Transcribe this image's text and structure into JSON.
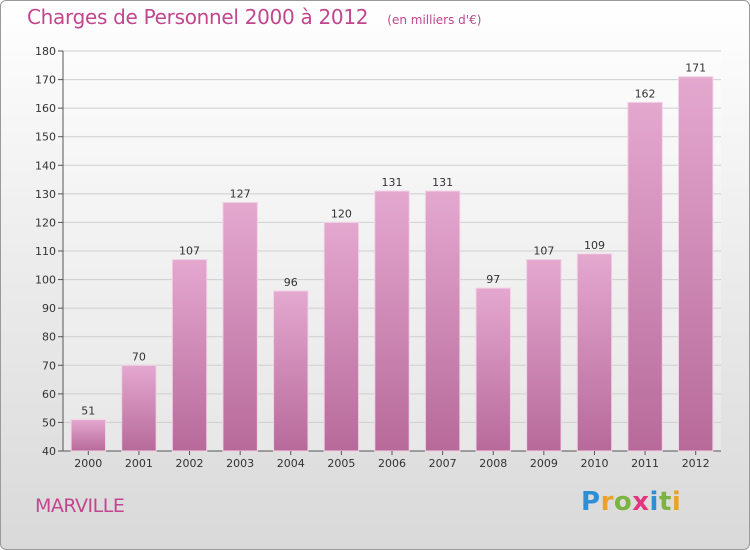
{
  "header": {
    "title": "Charges de Personnel 2000 à 2012",
    "subtitle": "(en milliers d'€)"
  },
  "footer": {
    "commune": "MARVILLE",
    "logo_text": "Proxiti",
    "logo_colors": [
      "#2e8fd6",
      "#e8a42a",
      "#7cb342",
      "#e2367f",
      "#2e8fd6",
      "#7cb342",
      "#e8a42a"
    ]
  },
  "colors": {
    "bar_light": "#e4a8cf",
    "bar_dark": "#b76a9a",
    "bar_edge": "#f2d2e6",
    "accent": "#c2468e",
    "grid": "#cfcfcf",
    "axis": "#555555",
    "label": "#333333"
  },
  "chart_data": {
    "type": "bar",
    "categories": [
      "2000",
      "2001",
      "2002",
      "2003",
      "2004",
      "2005",
      "2006",
      "2007",
      "2008",
      "2009",
      "2010",
      "2011",
      "2012"
    ],
    "values": [
      51,
      70,
      107,
      127,
      96,
      120,
      131,
      131,
      97,
      107,
      109,
      162,
      171
    ],
    "title": "Charges de Personnel 2000 à 2012",
    "subtitle": "(en milliers d'€)",
    "xlabel": "",
    "ylabel": "",
    "ylim": [
      40,
      180
    ],
    "yticks": [
      40,
      50,
      60,
      70,
      80,
      90,
      100,
      110,
      120,
      130,
      140,
      150,
      160,
      170,
      180
    ],
    "grid": true,
    "data_labels": true
  }
}
